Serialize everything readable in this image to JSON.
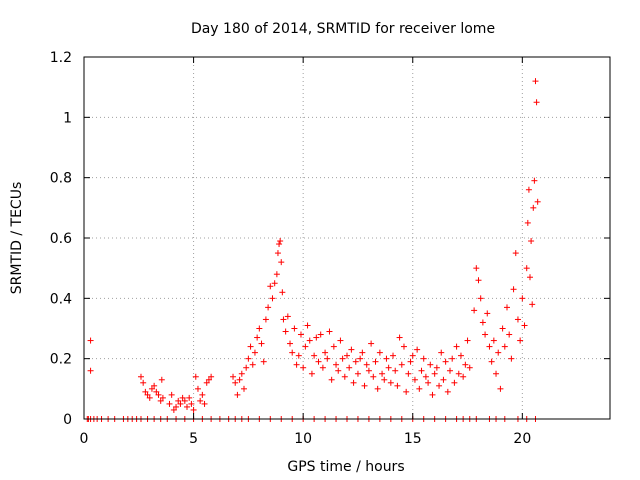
{
  "chart_data": {
    "type": "scatter",
    "title": "Day 180 of 2014, SRMTID for receiver lome",
    "xlabel": "GPS time / hours",
    "ylabel": "SRMTID / TECUs",
    "xlim": [
      0,
      24
    ],
    "ylim": [
      0,
      1.2
    ],
    "xticks": [
      0,
      5,
      10,
      15,
      20
    ],
    "yticks": [
      0,
      0.2,
      0.4,
      0.6,
      0.8,
      1,
      1.2
    ],
    "xtick_labels": [
      "0",
      "5",
      "10",
      "15",
      "20"
    ],
    "ytick_labels": [
      "0",
      "0.2",
      "0.4",
      "0.6",
      "0.8",
      "1",
      "1.2"
    ],
    "grid": true,
    "marker": "+",
    "color": "#ff0000",
    "series": [
      {
        "name": "SRMTID",
        "x": [
          0.15,
          0.2,
          0.3,
          0.45,
          0.6,
          0.8,
          1.1,
          1.4,
          1.8,
          2.0,
          2.2,
          2.4,
          2.6,
          2.9,
          3.2,
          3.5,
          3.8,
          4.2,
          4.6,
          5.0,
          5.4,
          5.8,
          6.2,
          6.6,
          6.9,
          7.2,
          7.5,
          8.0,
          8.5,
          9.0,
          9.5,
          10.0,
          10.5,
          11.0,
          11.5,
          12.0,
          12.5,
          13.0,
          13.5,
          14.0,
          14.5,
          15.0,
          15.5,
          16.0,
          16.5,
          17.0,
          17.3,
          17.6,
          17.9,
          18.5,
          18.8,
          19.2,
          19.8,
          20.2,
          20.6,
          0.3,
          0.3,
          2.6,
          2.7,
          2.8,
          2.9,
          3.0,
          3.1,
          3.2,
          3.3,
          3.4,
          3.5,
          3.55,
          3.6,
          3.9,
          4.0,
          4.1,
          4.2,
          4.3,
          4.4,
          4.5,
          4.6,
          4.7,
          4.8,
          4.9,
          5.0,
          5.1,
          5.2,
          5.3,
          5.4,
          5.5,
          5.6,
          5.7,
          5.8,
          6.8,
          6.9,
          7.0,
          7.1,
          7.2,
          7.3,
          7.4,
          7.5,
          7.6,
          7.7,
          7.8,
          7.9,
          8.0,
          8.1,
          8.2,
          8.3,
          8.4,
          8.5,
          8.6,
          8.7,
          8.8,
          8.85,
          8.9,
          8.95,
          9.0,
          9.05,
          9.1,
          9.2,
          9.3,
          9.4,
          9.5,
          9.6,
          9.7,
          9.8,
          9.9,
          10.0,
          10.1,
          10.2,
          10.3,
          10.4,
          10.5,
          10.6,
          10.7,
          10.8,
          10.9,
          11.0,
          11.1,
          11.2,
          11.3,
          11.4,
          11.5,
          11.6,
          11.7,
          11.8,
          11.9,
          12.0,
          12.1,
          12.2,
          12.3,
          12.4,
          12.5,
          12.6,
          12.7,
          12.8,
          12.9,
          13.0,
          13.1,
          13.2,
          13.3,
          13.4,
          13.5,
          13.6,
          13.7,
          13.8,
          13.9,
          14.0,
          14.1,
          14.2,
          14.3,
          14.4,
          14.5,
          14.6,
          14.7,
          14.8,
          14.9,
          15.0,
          15.1,
          15.2,
          15.3,
          15.4,
          15.5,
          15.6,
          15.7,
          15.8,
          15.9,
          16.0,
          16.1,
          16.2,
          16.3,
          16.4,
          16.5,
          16.6,
          16.7,
          16.8,
          16.9,
          17.0,
          17.1,
          17.2,
          17.3,
          17.4,
          17.5,
          17.6,
          17.8,
          17.9,
          18.0,
          18.1,
          18.2,
          18.3,
          18.4,
          18.5,
          18.6,
          18.7,
          18.8,
          18.9,
          19.0,
          19.1,
          19.2,
          19.3,
          19.4,
          19.5,
          19.6,
          19.7,
          19.8,
          19.9,
          20.0,
          20.1,
          20.2,
          20.25,
          20.3,
          20.35,
          20.4,
          20.45,
          20.5,
          20.55,
          20.6,
          20.65,
          20.7
        ],
        "y": [
          0,
          0,
          0,
          0,
          0,
          0,
          0,
          0,
          0,
          0,
          0,
          0,
          0,
          0,
          0,
          0,
          0,
          0,
          0,
          0,
          0,
          0,
          0,
          0,
          0,
          0,
          0,
          0,
          0,
          0,
          0,
          0,
          0,
          0,
          0,
          0,
          0,
          0,
          0,
          0,
          0,
          0,
          0,
          0,
          0,
          0,
          0,
          0,
          0,
          0,
          0,
          0,
          0,
          0,
          0,
          0.26,
          0.16,
          0.14,
          0.12,
          0.09,
          0.08,
          0.07,
          0.1,
          0.11,
          0.09,
          0.08,
          0.06,
          0.13,
          0.07,
          0.05,
          0.08,
          0.03,
          0.04,
          0.06,
          0.05,
          0.07,
          0.06,
          0.04,
          0.07,
          0.05,
          0.03,
          0.14,
          0.1,
          0.06,
          0.08,
          0.05,
          0.12,
          0.13,
          0.14,
          0.14,
          0.12,
          0.08,
          0.13,
          0.15,
          0.1,
          0.17,
          0.2,
          0.24,
          0.18,
          0.22,
          0.27,
          0.3,
          0.25,
          0.19,
          0.33,
          0.37,
          0.44,
          0.4,
          0.45,
          0.48,
          0.55,
          0.58,
          0.59,
          0.52,
          0.42,
          0.33,
          0.29,
          0.34,
          0.25,
          0.22,
          0.3,
          0.18,
          0.21,
          0.28,
          0.17,
          0.24,
          0.31,
          0.26,
          0.15,
          0.21,
          0.27,
          0.19,
          0.28,
          0.17,
          0.22,
          0.2,
          0.29,
          0.13,
          0.24,
          0.18,
          0.16,
          0.26,
          0.2,
          0.14,
          0.21,
          0.17,
          0.23,
          0.12,
          0.19,
          0.15,
          0.2,
          0.22,
          0.11,
          0.18,
          0.16,
          0.25,
          0.14,
          0.19,
          0.1,
          0.22,
          0.15,
          0.13,
          0.2,
          0.17,
          0.12,
          0.21,
          0.16,
          0.11,
          0.27,
          0.18,
          0.24,
          0.09,
          0.15,
          0.19,
          0.21,
          0.13,
          0.23,
          0.1,
          0.16,
          0.2,
          0.14,
          0.12,
          0.18,
          0.08,
          0.15,
          0.17,
          0.11,
          0.22,
          0.13,
          0.19,
          0.09,
          0.16,
          0.2,
          0.12,
          0.24,
          0.15,
          0.21,
          0.14,
          0.18,
          0.26,
          0.17,
          0.36,
          0.5,
          0.46,
          0.4,
          0.32,
          0.28,
          0.35,
          0.24,
          0.19,
          0.26,
          0.15,
          0.22,
          0.1,
          0.3,
          0.24,
          0.37,
          0.28,
          0.2,
          0.43,
          0.55,
          0.33,
          0.26,
          0.4,
          0.31,
          0.5,
          0.65,
          0.76,
          0.47,
          0.59,
          0.38,
          0.7,
          0.79,
          1.12,
          1.05,
          0.72
        ]
      }
    ]
  }
}
